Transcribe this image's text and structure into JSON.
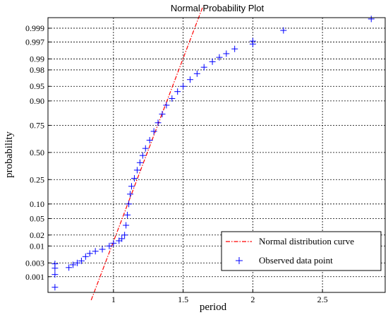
{
  "chart_data": {
    "type": "scatter",
    "title": "Normal Probability Plot",
    "xlabel": "period",
    "ylabel": "probability",
    "xlim": [
      0.53,
      2.95
    ],
    "x_ticks": [
      {
        "value": 1,
        "label": "1"
      },
      {
        "value": 1.5,
        "label": "1.5"
      },
      {
        "value": 2,
        "label": "2"
      },
      {
        "value": 2.5,
        "label": "2.5"
      }
    ],
    "y_scale": "normal-probability",
    "y_ticks": [
      {
        "value": 0.001,
        "label": "0.001"
      },
      {
        "value": 0.003,
        "label": "0.003"
      },
      {
        "value": 0.01,
        "label": "0.01"
      },
      {
        "value": 0.02,
        "label": "0.02"
      },
      {
        "value": 0.05,
        "label": "0.05"
      },
      {
        "value": 0.1,
        "label": "0.10"
      },
      {
        "value": 0.25,
        "label": "0.25"
      },
      {
        "value": 0.5,
        "label": "0.50"
      },
      {
        "value": 0.75,
        "label": "0.75"
      },
      {
        "value": 0.9,
        "label": "0.90"
      },
      {
        "value": 0.95,
        "label": "0.95"
      },
      {
        "value": 0.98,
        "label": "0.98"
      },
      {
        "value": 0.99,
        "label": "0.99"
      },
      {
        "value": 0.997,
        "label": "0.997"
      },
      {
        "value": 0.999,
        "label": "0.999"
      }
    ],
    "grid": true,
    "legend_position": "bottom-right",
    "series": [
      {
        "name": "Normal distribution curve",
        "kind": "reference-line",
        "color": "#ff0000",
        "dash": "dash-dot",
        "points": [
          [
            0.84,
            0.00012
          ],
          [
            1.64,
            0.99985
          ]
        ]
      },
      {
        "name": "Observed data point",
        "kind": "marker",
        "marker": "plus",
        "color": "#0000ff",
        "points": [
          [
            0.58,
            0.0004
          ],
          [
            0.58,
            0.0012
          ],
          [
            0.58,
            0.002
          ],
          [
            0.58,
            0.0028
          ],
          [
            0.68,
            0.0021
          ],
          [
            0.71,
            0.0026
          ],
          [
            0.74,
            0.003
          ],
          [
            0.77,
            0.0035
          ],
          [
            0.8,
            0.0048
          ],
          [
            0.83,
            0.006
          ],
          [
            0.87,
            0.007
          ],
          [
            0.92,
            0.008
          ],
          [
            0.97,
            0.01
          ],
          [
            1.0,
            0.012
          ],
          [
            1.04,
            0.014
          ],
          [
            1.06,
            0.016
          ],
          [
            1.08,
            0.02
          ],
          [
            1.09,
            0.035
          ],
          [
            1.1,
            0.06
          ],
          [
            1.11,
            0.1
          ],
          [
            1.12,
            0.15
          ],
          [
            1.13,
            0.2
          ],
          [
            1.15,
            0.26
          ],
          [
            1.17,
            0.33
          ],
          [
            1.19,
            0.4
          ],
          [
            1.21,
            0.47
          ],
          [
            1.23,
            0.54
          ],
          [
            1.26,
            0.62
          ],
          [
            1.29,
            0.7
          ],
          [
            1.32,
            0.77
          ],
          [
            1.35,
            0.83
          ],
          [
            1.38,
            0.88
          ],
          [
            1.42,
            0.91
          ],
          [
            1.46,
            0.935
          ],
          [
            1.5,
            0.95
          ],
          [
            1.55,
            0.965
          ],
          [
            1.6,
            0.975
          ],
          [
            1.65,
            0.983
          ],
          [
            1.71,
            0.988
          ],
          [
            1.76,
            0.991
          ],
          [
            1.81,
            0.993
          ],
          [
            1.87,
            0.995
          ],
          [
            2.0,
            0.9965
          ],
          [
            2.0,
            0.9972
          ],
          [
            2.22,
            0.9988
          ],
          [
            2.85,
            0.99955
          ]
        ]
      }
    ]
  }
}
